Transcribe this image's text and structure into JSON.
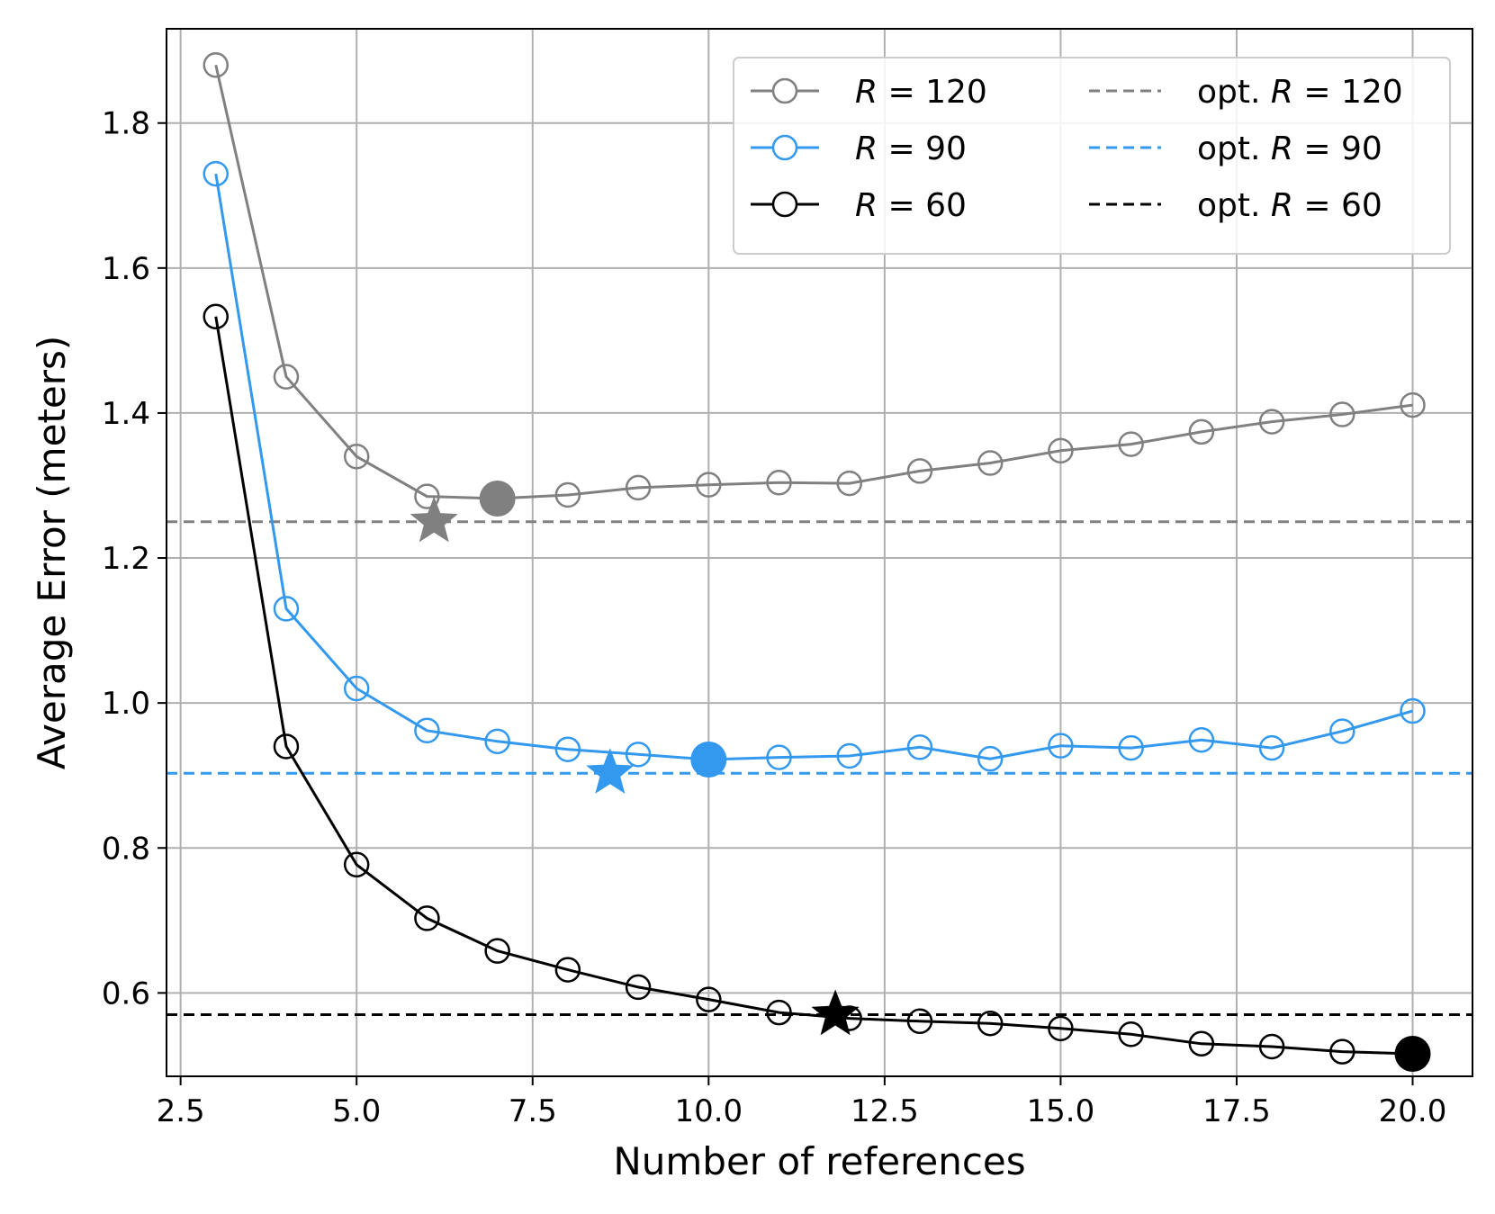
{
  "chart_data": {
    "type": "line",
    "title": "",
    "xlabel": "Number of references",
    "ylabel": "Average Error (meters)",
    "xlim": [
      2.3,
      20.85
    ],
    "ylim": [
      0.485,
      1.93
    ],
    "xticks": [
      2.5,
      5.0,
      7.5,
      10.0,
      12.5,
      15.0,
      17.5,
      20.0
    ],
    "xtick_labels": [
      "2.5",
      "5.0",
      "7.5",
      "10.0",
      "12.5",
      "15.0",
      "17.5",
      "20.0"
    ],
    "yticks": [
      0.6,
      0.8,
      1.0,
      1.2,
      1.4,
      1.6,
      1.8
    ],
    "ytick_labels": [
      "0.6",
      "0.8",
      "1.0",
      "1.2",
      "1.4",
      "1.6",
      "1.8"
    ],
    "grid": true,
    "legend_position": "top-right",
    "x": [
      3,
      4,
      5,
      6,
      7,
      8,
      9,
      10,
      11,
      12,
      13,
      14,
      15,
      16,
      17,
      18,
      19,
      20
    ],
    "series": [
      {
        "name": "R = 120",
        "legend_var": "R",
        "legend_rest": " = 120",
        "color": "#808080",
        "values": [
          1.88,
          1.45,
          1.34,
          1.285,
          1.282,
          1.287,
          1.297,
          1.301,
          1.304,
          1.303,
          1.32,
          1.331,
          1.348,
          1.357,
          1.374,
          1.388,
          1.398,
          1.411
        ],
        "best": {
          "x": 7,
          "y": 1.282
        },
        "star": {
          "x": 6.1,
          "y": 1.25
        },
        "optimal": {
          "name": "opt. R = 120",
          "prefix": "opt. ",
          "var": "R",
          "rest": " = 120",
          "y": 1.25
        }
      },
      {
        "name": "R = 90",
        "legend_var": "R",
        "legend_rest": " = 90",
        "color": "#3399ee",
        "values": [
          1.73,
          1.13,
          1.02,
          0.962,
          0.947,
          0.936,
          0.929,
          0.922,
          0.925,
          0.927,
          0.939,
          0.923,
          0.941,
          0.938,
          0.949,
          0.938,
          0.961,
          0.989
        ],
        "best": {
          "x": 10,
          "y": 0.922
        },
        "star": {
          "x": 8.6,
          "y": 0.903
        },
        "optimal": {
          "name": "opt. R = 90",
          "prefix": "opt. ",
          "var": "R",
          "rest": " = 90",
          "y": 0.903
        }
      },
      {
        "name": "R = 60",
        "legend_var": "R",
        "legend_rest": " = 60",
        "color": "#000000",
        "values": [
          1.533,
          0.94,
          0.777,
          0.703,
          0.658,
          0.632,
          0.608,
          0.591,
          0.573,
          0.565,
          0.561,
          0.558,
          0.551,
          0.543,
          0.53,
          0.526,
          0.519,
          0.516
        ],
        "best": {
          "x": 20,
          "y": 0.516
        },
        "star": {
          "x": 11.8,
          "y": 0.57
        },
        "optimal": {
          "name": "opt. R = 60",
          "prefix": "opt. ",
          "var": "R",
          "rest": " = 60",
          "y": 0.57
        }
      }
    ]
  }
}
